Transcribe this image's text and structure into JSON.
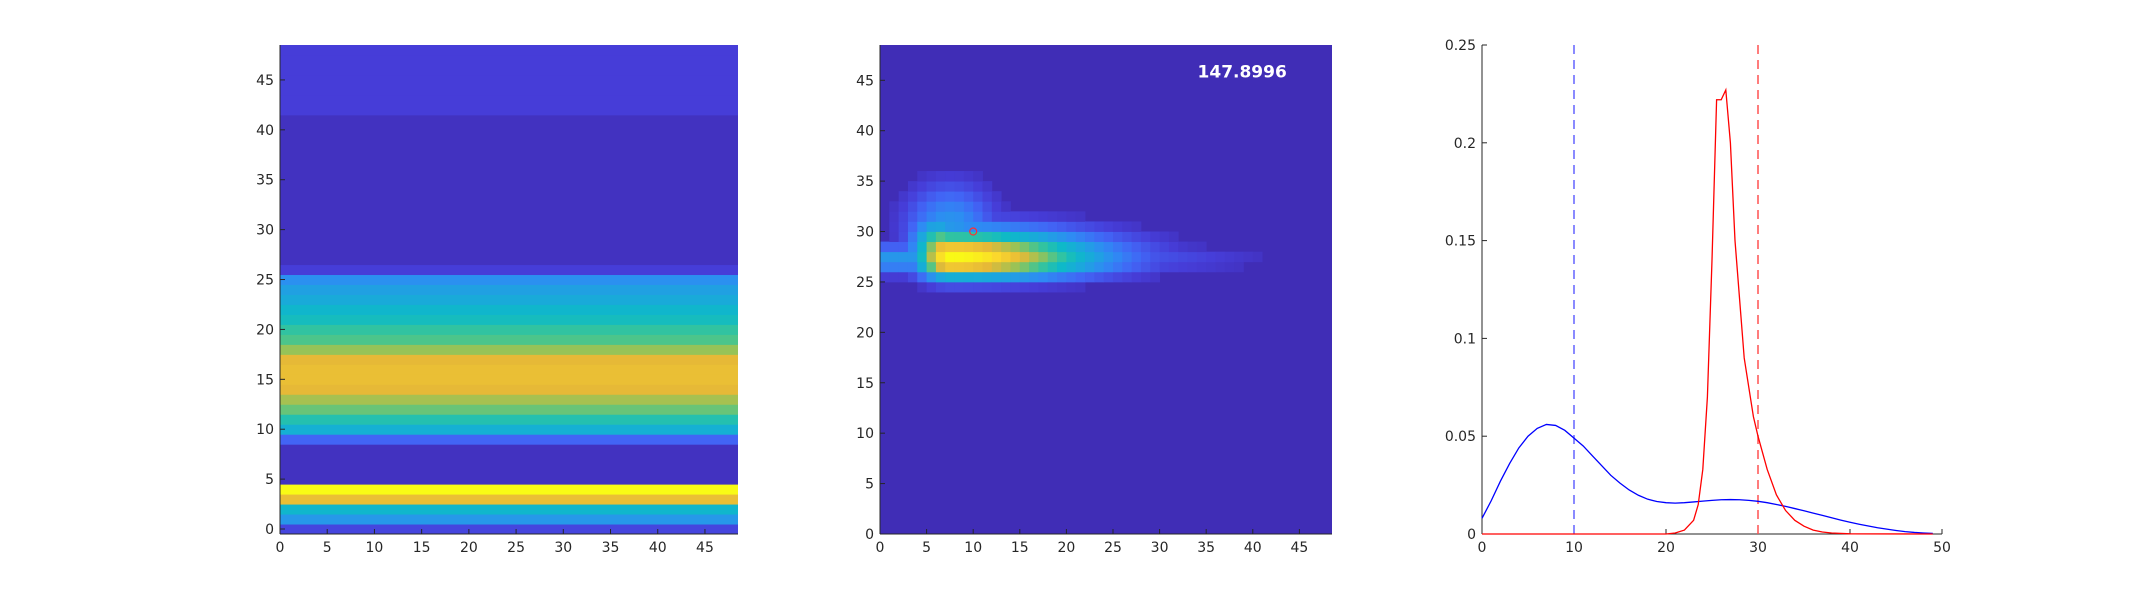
{
  "chart_data": [
    {
      "type": "heatmap",
      "title": "",
      "xlabel": "",
      "ylabel": "",
      "xlim": [
        0,
        48.5
      ],
      "ylim": [
        -0.5,
        48.5
      ],
      "xticks": [
        0,
        5,
        10,
        15,
        20,
        25,
        30,
        35,
        40,
        45
      ],
      "yticks": [
        0,
        5,
        10,
        15,
        20,
        25,
        30,
        35,
        40,
        45
      ],
      "colormap": "parula",
      "row_levels_bottom_to_top": [
        0.12,
        0.35,
        0.48,
        0.82,
        1.0,
        0.05,
        0.05,
        0.05,
        0.05,
        0.2,
        0.45,
        0.55,
        0.65,
        0.72,
        0.8,
        0.82,
        0.82,
        0.8,
        0.7,
        0.62,
        0.58,
        0.52,
        0.48,
        0.42,
        0.38,
        0.32,
        0.1,
        0.05,
        0.05,
        0.05,
        0.05,
        0.05,
        0.05,
        0.05,
        0.05,
        0.05,
        0.05,
        0.05,
        0.05,
        0.05,
        0.05,
        0.05,
        0.1,
        0.1,
        0.1,
        0.1,
        0.1,
        0.1,
        0.1
      ]
    },
    {
      "type": "heatmap",
      "title": "",
      "xlabel": "",
      "ylabel": "",
      "xlim": [
        0,
        48.5
      ],
      "ylim": [
        0,
        48.5
      ],
      "xticks": [
        0,
        5,
        10,
        15,
        20,
        25,
        30,
        35,
        40,
        45
      ],
      "yticks": [
        0,
        5,
        10,
        15,
        20,
        25,
        30,
        35,
        40,
        45
      ],
      "colormap": "parula",
      "annotation": "147.8996",
      "peak": {
        "x": 7,
        "y": 26.8
      },
      "marker": {
        "x": 10,
        "y": 30
      }
    },
    {
      "type": "line",
      "title": "",
      "xlabel": "",
      "ylabel": "",
      "xlim": [
        0,
        50
      ],
      "ylim": [
        0,
        0.25
      ],
      "xticks": [
        0,
        10,
        20,
        30,
        40,
        50
      ],
      "yticks": [
        0,
        0.05,
        0.1,
        0.15,
        0.2,
        0.25
      ],
      "ytick_labels": [
        "0",
        "0.05",
        "0.1",
        "0.15",
        "0.2",
        "0.25"
      ],
      "vlines": [
        {
          "x": 10,
          "color": "#6464ff",
          "style": "dashed"
        },
        {
          "x": 30,
          "color": "#ff5050",
          "style": "dashed"
        }
      ],
      "series": [
        {
          "color": "#0000ff",
          "x": [
            0,
            1,
            2,
            3,
            4,
            5,
            6,
            7,
            8,
            9,
            10,
            11,
            12,
            13,
            14,
            15,
            16,
            17,
            18,
            19,
            20,
            21,
            22,
            23,
            24,
            25,
            26,
            27,
            28,
            29,
            30,
            31,
            32,
            33,
            34,
            35,
            36,
            37,
            38,
            39,
            40,
            41,
            42,
            43,
            44,
            45,
            46,
            47,
            48,
            49
          ],
          "y": [
            0.008,
            0.017,
            0.027,
            0.036,
            0.044,
            0.05,
            0.054,
            0.056,
            0.0555,
            0.053,
            0.049,
            0.045,
            0.04,
            0.035,
            0.03,
            0.026,
            0.0225,
            0.0198,
            0.0178,
            0.0166,
            0.016,
            0.0158,
            0.016,
            0.0164,
            0.0168,
            0.0172,
            0.0175,
            0.0176,
            0.0175,
            0.0172,
            0.0167,
            0.016,
            0.0151,
            0.0141,
            0.013,
            0.0119,
            0.0107,
            0.0095,
            0.0083,
            0.0071,
            0.006,
            0.005,
            0.0041,
            0.0032,
            0.0025,
            0.0018,
            0.0012,
            0.0008,
            0.0005,
            0.0003
          ]
        },
        {
          "color": "#ff0000",
          "x": [
            0,
            20,
            21,
            22,
            23,
            23.5,
            24,
            24.5,
            25,
            25.5,
            26,
            26.5,
            27,
            27.5,
            28,
            28.5,
            29,
            29.5,
            30,
            31,
            32,
            33,
            34,
            35,
            36,
            37,
            38,
            40,
            49
          ],
          "y": [
            0,
            0,
            0.0005,
            0.002,
            0.007,
            0.015,
            0.033,
            0.07,
            0.14,
            0.222,
            0.222,
            0.227,
            0.2,
            0.15,
            0.12,
            0.09,
            0.075,
            0.06,
            0.05,
            0.033,
            0.02,
            0.012,
            0.007,
            0.004,
            0.002,
            0.001,
            0.0005,
            0.0001,
            0
          ]
        }
      ]
    }
  ]
}
